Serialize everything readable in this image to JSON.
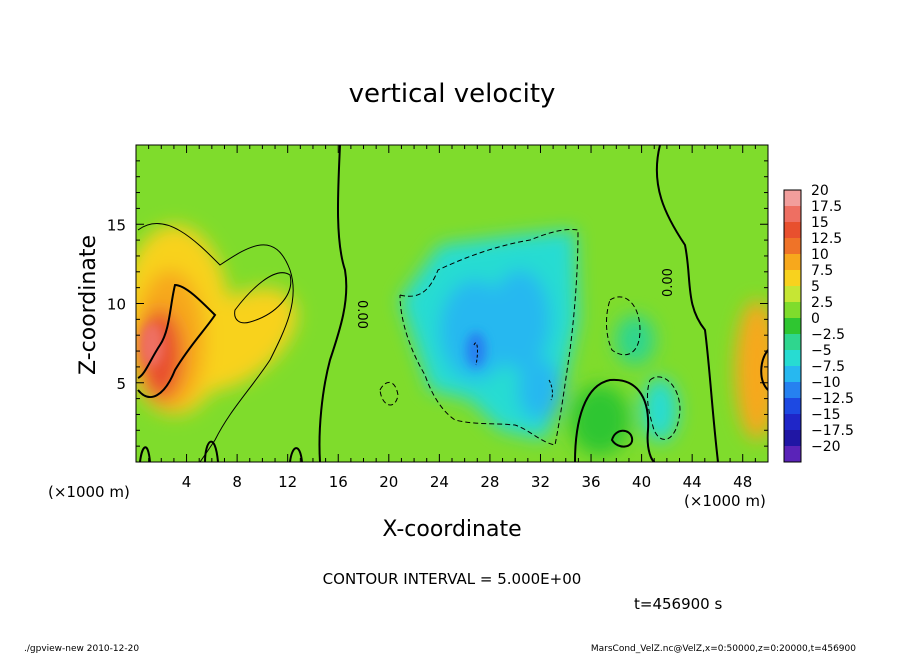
{
  "chart_data": {
    "type": "heatmap",
    "title": "vertical velocity",
    "xlabel": "X-coordinate",
    "ylabel": "Z-coordinate",
    "x_unit": "(×1000 m)",
    "z_unit": "(×1000 m)",
    "xlim": [
      0,
      50
    ],
    "ylim": [
      0,
      20
    ],
    "x_ticks": [
      "4",
      "8",
      "12",
      "16",
      "20",
      "24",
      "28",
      "32",
      "36",
      "40",
      "44",
      "48"
    ],
    "y_ticks": [
      "5",
      "10",
      "15"
    ],
    "colorbar": {
      "levels": [
        "20",
        "17.5",
        "15",
        "12.5",
        "10",
        "7.5",
        "5",
        "2.5",
        "0",
        "−2.5",
        "−5",
        "−7.5",
        "−10",
        "−12.5",
        "−15",
        "−17.5",
        "−20"
      ],
      "colors": [
        "#f29e9c",
        "#ee6f62",
        "#e8502e",
        "#ef7328",
        "#f7a81c",
        "#f8d21e",
        "#c6e634",
        "#7fdc2c",
        "#2fc631",
        "#2fd68e",
        "#27dcd2",
        "#27b8f0",
        "#2681f0",
        "#1d49e2",
        "#1f26c8",
        "#2016a4",
        "#5a23b8"
      ]
    },
    "contour_interval": "CONTOUR INTERVAL = 5.000E+00",
    "contour_labels": [
      "0.00",
      "0.00",
      "0.00"
    ],
    "features": [
      {
        "kind": "updraft",
        "x": 2.5,
        "z": 7,
        "w": 17
      },
      {
        "kind": "updraft_band",
        "x": 5,
        "z": 8,
        "w": 8
      },
      {
        "kind": "downdraft",
        "x": 27,
        "z": 8,
        "w": -9
      },
      {
        "kind": "downdraft",
        "x": 32,
        "z": 6,
        "w": -8
      },
      {
        "kind": "downdraft",
        "x": 41.5,
        "z": 3,
        "w": -5
      },
      {
        "kind": "updraft",
        "x": 49.5,
        "z": 6,
        "w": 11
      }
    ],
    "time_label": "t=456900 s"
  },
  "footer": {
    "left": "./gpview-new  2010-12-20",
    "right": "MarsCond_VelZ.nc@VelZ,x=0:50000,z=0:20000,t=456900"
  }
}
